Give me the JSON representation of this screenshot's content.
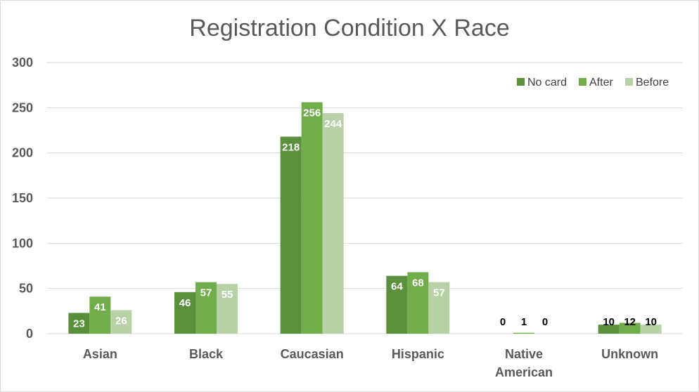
{
  "chart_data": {
    "type": "bar",
    "title": "Registration Condition X Race",
    "categories": [
      [
        "Asian"
      ],
      [
        "Black"
      ],
      [
        "Caucasian"
      ],
      [
        "Hispanic"
      ],
      [
        "Native",
        "American"
      ],
      [
        "Unknown"
      ]
    ],
    "series": [
      {
        "name": "No card",
        "color": "#5a8f3c",
        "values": [
          23,
          46,
          218,
          64,
          0,
          10
        ]
      },
      {
        "name": "After",
        "color": "#72ad4b",
        "values": [
          41,
          57,
          256,
          68,
          1,
          12
        ]
      },
      {
        "name": "Before",
        "color": "#b8d1a6",
        "values": [
          26,
          55,
          244,
          57,
          0,
          10
        ]
      }
    ],
    "ylim": [
      0,
      300
    ],
    "yticks": [
      0,
      50,
      100,
      150,
      200,
      250,
      300
    ],
    "grid": true,
    "legend": "top-right",
    "data_labels": true
  }
}
